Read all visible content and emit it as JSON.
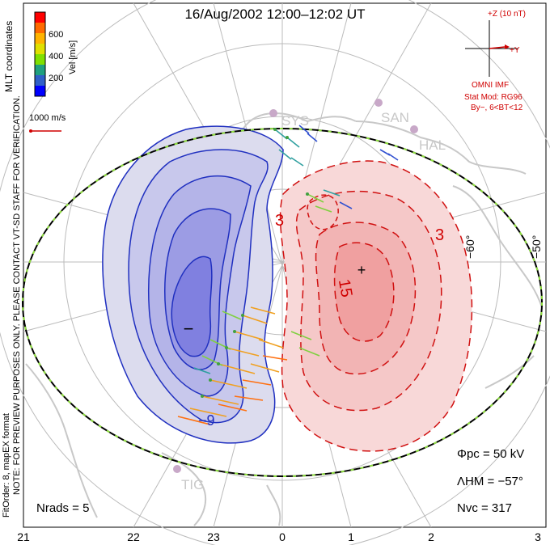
{
  "title": "16/Aug/2002 12:00–12:02 UT",
  "colorbar": {
    "label": "Vel [m/s]",
    "ticks": [
      "600",
      "400",
      "200"
    ],
    "colors": [
      "#ff0000",
      "#ff6a00",
      "#ffb400",
      "#b4ff00",
      "#4cc84c",
      "#20a0a0",
      "#3060c8",
      "#0000ff"
    ]
  },
  "coordinates_label": "MLT coordinates",
  "scale_vector_label": "1000 m/s",
  "imf": {
    "z_label": "+Z (10 nT)",
    "y_label": "+Y",
    "source": "OMNI IMF",
    "model_line1": "Stat Mod: RG96",
    "model_line2": "By−, 6<BT<12"
  },
  "stations": [
    "SYS",
    "SAN",
    "HAL",
    "TIG"
  ],
  "lat_labels": [
    "−60°",
    "−50°"
  ],
  "contour_labels": [
    "3",
    "3",
    "15",
    "−9",
    "−",
    "+"
  ],
  "stats": {
    "phi_pc": "Φpc = 50 kV",
    "lambda_hm": "ΛHM = −57°",
    "n_vc": "Nvc = 317",
    "n_rads": "Nrads = 5"
  },
  "side_note_1": "NOTE: FOR PREVIEW PURPOSES ONLY. PLEASE CONTACT VT-SD STAFF FOR VERIFICATION.",
  "side_note_2": "FitOrder: 8, mapEX format",
  "mlt_ticks": [
    "21",
    "22",
    "23",
    "0",
    "1",
    "2",
    "3"
  ]
}
